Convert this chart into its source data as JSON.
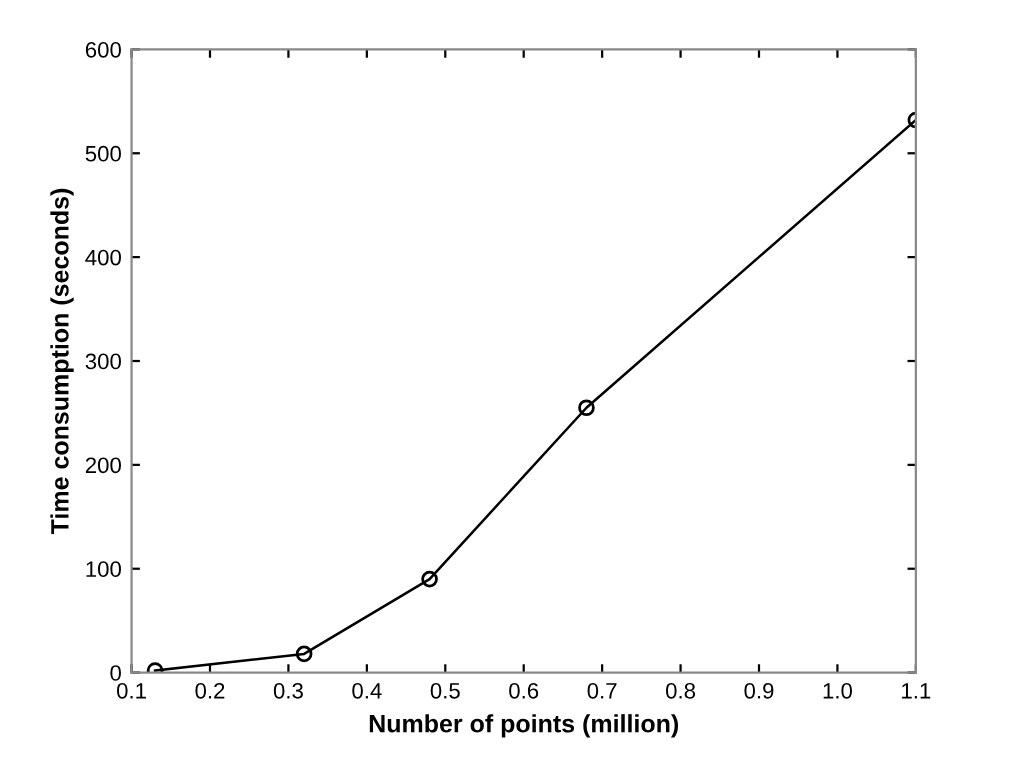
{
  "chart_data": {
    "type": "line",
    "xlabel": "Number of points (million)",
    "ylabel": "Time consumption (seconds)",
    "x": [
      0.13,
      0.32,
      0.48,
      0.68,
      1.1
    ],
    "series": [
      {
        "color": "#000000",
        "values": [
          2,
          18,
          90,
          255,
          532
        ]
      }
    ],
    "xlim": [
      0.1,
      1.1
    ],
    "xticks": [
      0.1,
      0.2,
      0.3,
      0.4,
      0.5,
      0.6,
      0.7,
      0.8,
      0.9,
      {
        "value": 1.0,
        "label": "1.0"
      },
      1.1
    ],
    "ylim": [
      0,
      600
    ],
    "yticks": [
      0,
      100,
      200,
      300,
      400,
      500,
      600
    ],
    "grid": false,
    "legend": false,
    "marker": "circle",
    "line_style": "solid"
  }
}
